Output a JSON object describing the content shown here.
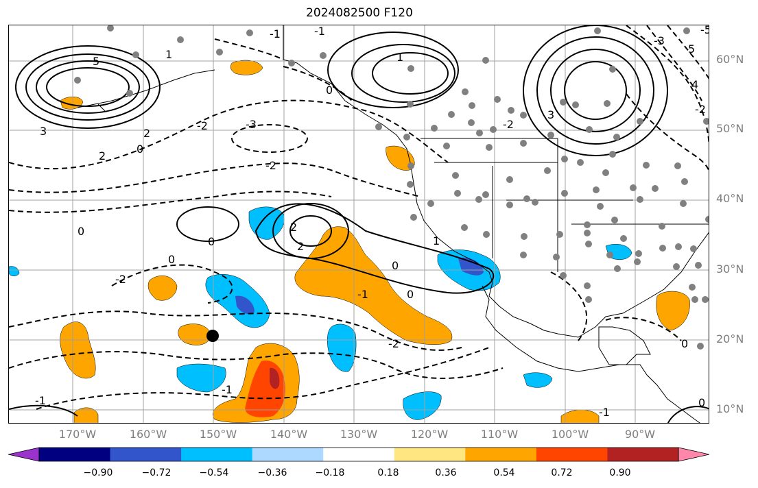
{
  "title": "2024082500 F120",
  "lat_labels": [
    "60°N",
    "50°N",
    "40°N",
    "30°N",
    "20°N",
    "10°N"
  ],
  "lon_labels": [
    "170°W",
    "160°W",
    "150°W",
    "140°W",
    "130°W",
    "120°W",
    "110°W",
    "100°W",
    "90°W"
  ],
  "contour_labels": [
    "5",
    "3",
    "2",
    "0",
    "0",
    "-1",
    "1",
    "-2",
    "-3",
    "2",
    "-2",
    "0",
    "0",
    "-1",
    "-2",
    "2",
    "1",
    "0",
    "-1",
    "-2",
    "0",
    "-1",
    "1",
    "-1",
    "0",
    "0",
    "3",
    "5",
    "4",
    "-2",
    "-1",
    "0",
    "2",
    "-2",
    "-3",
    "-5"
  ],
  "colorbar": {
    "tick_labels": [
      "−0.90",
      "−0.72",
      "−0.54",
      "−0.36",
      "−0.18",
      "0.18",
      "0.36",
      "0.54",
      "0.72",
      "0.90"
    ],
    "colors": [
      "#9933cc",
      "#000080",
      "#3355cc",
      "#00bfff",
      "#add8ff",
      "#ffffff",
      "#ffe680",
      "#ffa500",
      "#ff4500",
      "#b22222",
      "#ff88aa"
    ]
  },
  "markers": {
    "station_color": "#808080",
    "highlight_color": "#000000"
  }
}
